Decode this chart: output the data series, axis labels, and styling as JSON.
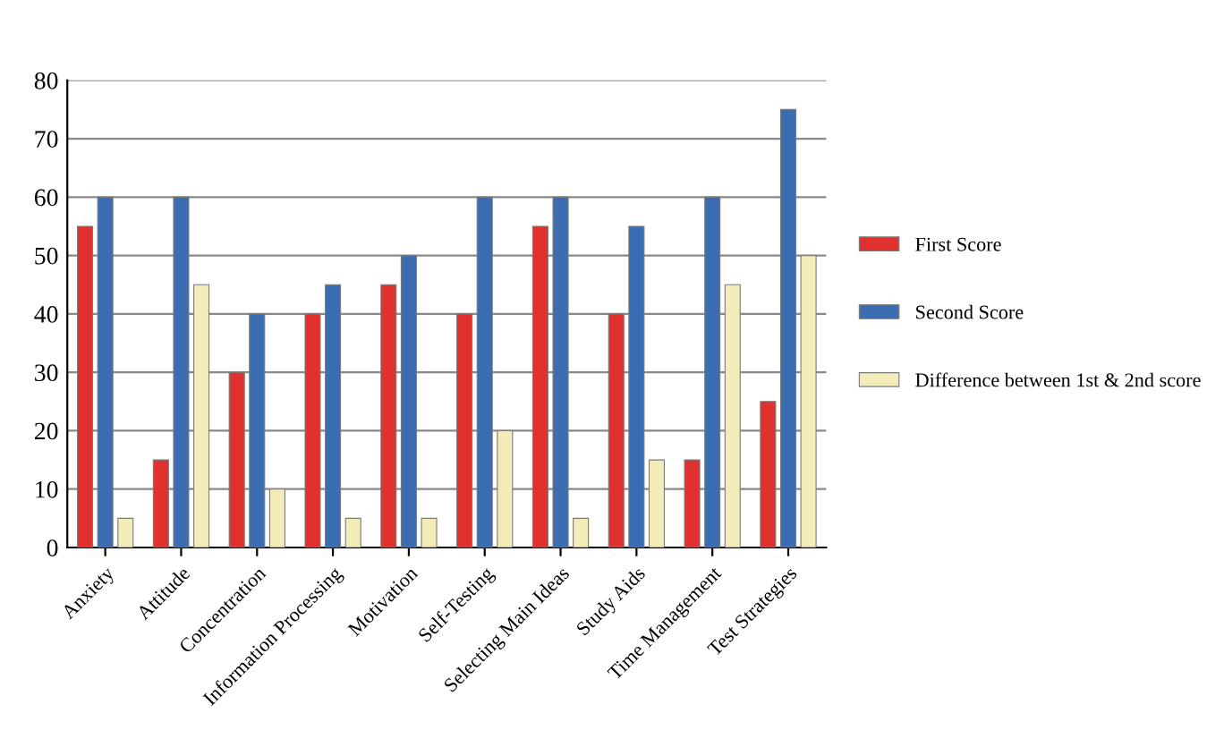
{
  "chart_data": {
    "type": "bar",
    "categories": [
      "Anxiety",
      "Attitude",
      "Concentration",
      "Information Processing",
      "Motivation",
      "Self-Testing",
      "Selecting Main Ideas",
      "Study Aids",
      "Time Management",
      "Test Strategies"
    ],
    "series": [
      {
        "name": "First Score",
        "color": "#e0312e",
        "values": [
          55,
          15,
          30,
          40,
          45,
          40,
          55,
          40,
          15,
          25
        ]
      },
      {
        "name": "Second Score",
        "color": "#3b6db3",
        "values": [
          60,
          60,
          40,
          45,
          50,
          60,
          60,
          55,
          60,
          75
        ]
      },
      {
        "name": "Difference between 1st & 2nd score",
        "color": "#f3ecb8",
        "values": [
          5,
          45,
          10,
          5,
          5,
          20,
          5,
          15,
          45,
          50
        ]
      }
    ],
    "ylim": [
      0,
      80
    ],
    "yticks": [
      0,
      10,
      20,
      30,
      40,
      50,
      60,
      70,
      80
    ],
    "grid": "y",
    "legend": "right"
  }
}
